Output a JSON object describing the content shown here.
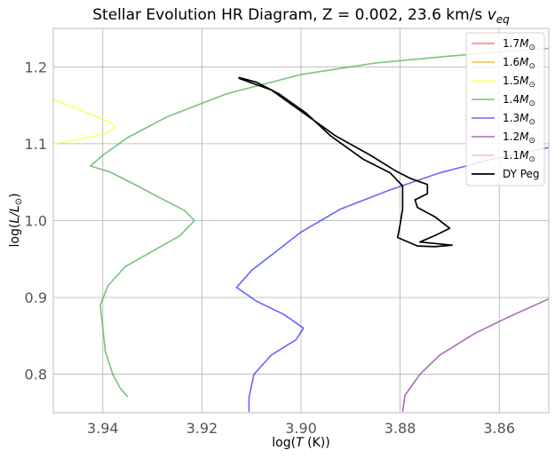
{
  "chart_data": {
    "type": "line",
    "title_main": "Stellar Evolution HR Diagram, Z = 0.002, 23.6 km/s ",
    "title_sym": "v",
    "title_sub": "eq",
    "xlabel_pre": "log(",
    "xlabel_var": "T",
    "xlabel_post": " (K))",
    "ylabel_pre": "log(",
    "ylabel_var": "L/L",
    "ylabel_sun": "⊙",
    "ylabel_post": ")",
    "xlim": [
      3.95,
      3.85
    ],
    "ylim": [
      0.75,
      1.25
    ],
    "x_inverted": true,
    "grid": true,
    "legend_position": "top-right",
    "xticks": [
      {
        "value": 3.94,
        "label": "3.94"
      },
      {
        "value": 3.92,
        "label": "3.92"
      },
      {
        "value": 3.9,
        "label": "3.90"
      },
      {
        "value": 3.88,
        "label": "3.88"
      },
      {
        "value": 3.86,
        "label": "3.86"
      }
    ],
    "yticks": [
      {
        "value": 0.8,
        "label": "0.8"
      },
      {
        "value": 0.9,
        "label": "0.9"
      },
      {
        "value": 1.0,
        "label": "1.0"
      },
      {
        "value": 1.1,
        "label": "1.1"
      },
      {
        "value": 1.2,
        "label": "1.2"
      }
    ],
    "series": [
      {
        "name": "1.7",
        "color": "#ff4d4d",
        "points": []
      },
      {
        "name": "1.6",
        "color": "#ffa500",
        "points": []
      },
      {
        "name": "1.5",
        "color": "#ffff33",
        "points": [
          [
            3.952,
            1.163
          ],
          [
            3.944,
            1.142
          ],
          [
            3.9385,
            1.128
          ],
          [
            3.9375,
            1.122
          ],
          [
            3.9395,
            1.113
          ],
          [
            3.946,
            1.104
          ],
          [
            3.952,
            1.097
          ]
        ]
      },
      {
        "name": "1.4",
        "color": "#4caf50",
        "points": [
          [
            3.935,
            0.771
          ],
          [
            3.9365,
            0.782
          ],
          [
            3.938,
            0.8
          ],
          [
            3.9395,
            0.83
          ],
          [
            3.94,
            0.86
          ],
          [
            3.9405,
            0.89
          ],
          [
            3.939,
            0.915
          ],
          [
            3.9355,
            0.94
          ],
          [
            3.93,
            0.96
          ],
          [
            3.9245,
            0.98
          ],
          [
            3.9215,
            1.0
          ],
          [
            3.9235,
            1.013
          ],
          [
            3.928,
            1.028
          ],
          [
            3.933,
            1.045
          ],
          [
            3.9385,
            1.063
          ],
          [
            3.9425,
            1.071
          ],
          [
            3.94,
            1.085
          ],
          [
            3.935,
            1.108
          ],
          [
            3.927,
            1.135
          ],
          [
            3.915,
            1.165
          ],
          [
            3.9,
            1.19
          ],
          [
            3.885,
            1.205
          ],
          [
            3.87,
            1.214
          ],
          [
            3.855,
            1.222
          ],
          [
            3.85,
            1.224
          ]
        ]
      },
      {
        "name": "1.3",
        "color": "#3333ff",
        "points": [
          [
            3.9105,
            0.752
          ],
          [
            3.9105,
            0.77
          ],
          [
            3.9095,
            0.8
          ],
          [
            3.906,
            0.825
          ],
          [
            3.901,
            0.845
          ],
          [
            3.8995,
            0.86
          ],
          [
            3.9035,
            0.878
          ],
          [
            3.909,
            0.895
          ],
          [
            3.913,
            0.913
          ],
          [
            3.91,
            0.935
          ],
          [
            3.905,
            0.96
          ],
          [
            3.9,
            0.985
          ],
          [
            3.892,
            1.015
          ],
          [
            3.882,
            1.04
          ],
          [
            3.872,
            1.062
          ],
          [
            3.862,
            1.079
          ],
          [
            3.85,
            1.095
          ]
        ]
      },
      {
        "name": "1.2",
        "color": "#8e3a9e",
        "points": [
          [
            3.8795,
            0.752
          ],
          [
            3.879,
            0.773
          ],
          [
            3.876,
            0.8
          ],
          [
            3.872,
            0.825
          ],
          [
            3.865,
            0.853
          ],
          [
            3.858,
            0.875
          ],
          [
            3.85,
            0.898
          ],
          [
            3.845,
            0.915
          ]
        ]
      },
      {
        "name": "1.1",
        "color": "#ff99dd",
        "points": []
      },
      {
        "name": "DY Peg",
        "color": "#000000",
        "points": [
          [
            3.9125,
            1.185
          ],
          [
            3.906,
            1.17
          ],
          [
            3.8995,
            1.14
          ],
          [
            3.893,
            1.11
          ],
          [
            3.886,
            1.085
          ],
          [
            3.881,
            1.065
          ],
          [
            3.878,
            1.055
          ],
          [
            3.8745,
            1.047
          ],
          [
            3.8745,
            1.035
          ],
          [
            3.877,
            1.027
          ],
          [
            3.8765,
            1.017
          ],
          [
            3.873,
            1.005
          ],
          [
            3.87,
            0.99
          ],
          [
            3.8725,
            0.982
          ],
          [
            3.876,
            0.972
          ],
          [
            3.8695,
            0.968
          ],
          [
            3.873,
            0.966
          ],
          [
            3.8765,
            0.967
          ],
          [
            3.8805,
            0.978
          ],
          [
            3.88,
            0.995
          ],
          [
            3.8795,
            1.015
          ],
          [
            3.8795,
            1.045
          ],
          [
            3.882,
            1.062
          ],
          [
            3.8875,
            1.08
          ],
          [
            3.894,
            1.11
          ],
          [
            3.899,
            1.14
          ],
          [
            3.9045,
            1.165
          ],
          [
            3.909,
            1.18
          ],
          [
            3.9125,
            1.186
          ]
        ]
      }
    ]
  }
}
